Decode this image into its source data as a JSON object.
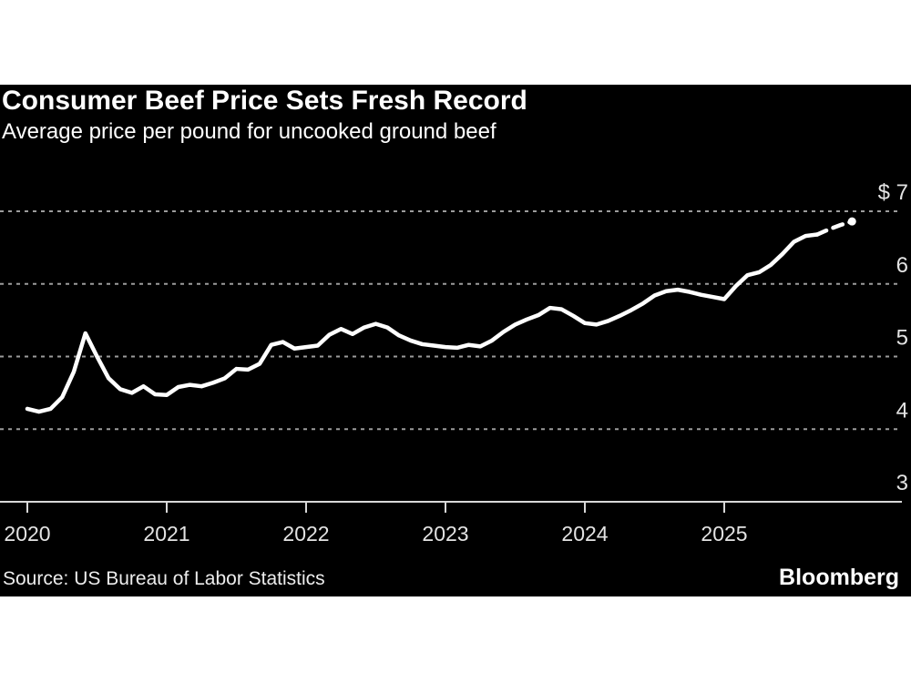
{
  "header": {
    "title": "Consumer Beef Price Sets Fresh Record",
    "subtitle": "Average price per pound for uncooked ground beef"
  },
  "footer": {
    "source": "Source: US Bureau of Labor Statistics",
    "brand": "Bloomberg"
  },
  "chart_data": {
    "type": "line",
    "title": "Consumer Beef Price Sets Fresh Record",
    "subtitle": "Average price per pound for uncooked ground beef",
    "source": "Source: US Bureau of Labor Statistics",
    "legend": "none",
    "grid": "horizontal-dashed",
    "ylim": [
      3,
      7
    ],
    "xticks": [
      "2020",
      "2021",
      "2022",
      "2023",
      "2024",
      "2025"
    ],
    "yticks": [
      {
        "label": "$ 7",
        "value": 7
      },
      {
        "label": "6",
        "value": 6
      },
      {
        "label": "5",
        "value": 5
      },
      {
        "label": "4",
        "value": 4
      },
      {
        "label": "3",
        "value": 3
      }
    ],
    "series": [
      {
        "name": "Average price per pound, uncooked ground beef (USD)",
        "x_start": "2020-01",
        "x_frequency": "monthly",
        "dashed_from_index": 68,
        "end_marker": "dot",
        "values": [
          4.28,
          4.24,
          4.28,
          4.44,
          4.79,
          5.32,
          5.0,
          4.7,
          4.55,
          4.5,
          4.59,
          4.48,
          4.47,
          4.58,
          4.61,
          4.59,
          4.64,
          4.7,
          4.83,
          4.82,
          4.9,
          5.16,
          5.2,
          5.11,
          5.13,
          5.15,
          5.3,
          5.38,
          5.31,
          5.4,
          5.45,
          5.4,
          5.29,
          5.22,
          5.17,
          5.15,
          5.13,
          5.12,
          5.16,
          5.14,
          5.22,
          5.34,
          5.44,
          5.51,
          5.57,
          5.67,
          5.65,
          5.56,
          5.46,
          5.44,
          5.49,
          5.56,
          5.64,
          5.73,
          5.84,
          5.9,
          5.92,
          5.89,
          5.85,
          5.82,
          5.79,
          5.97,
          6.12,
          6.16,
          6.26,
          6.41,
          6.58,
          6.66,
          6.68,
          6.75,
          6.81,
          6.86
        ]
      }
    ],
    "colors": {
      "page_background": "#ffffff",
      "chart_background": "#000000",
      "line": "#ffffff",
      "gridline": "#9c9c9c",
      "axis": "#d8d8d8",
      "tick_text": "#e3e3e3",
      "title_text": "#ffffff",
      "source_text": "#ececec"
    }
  }
}
